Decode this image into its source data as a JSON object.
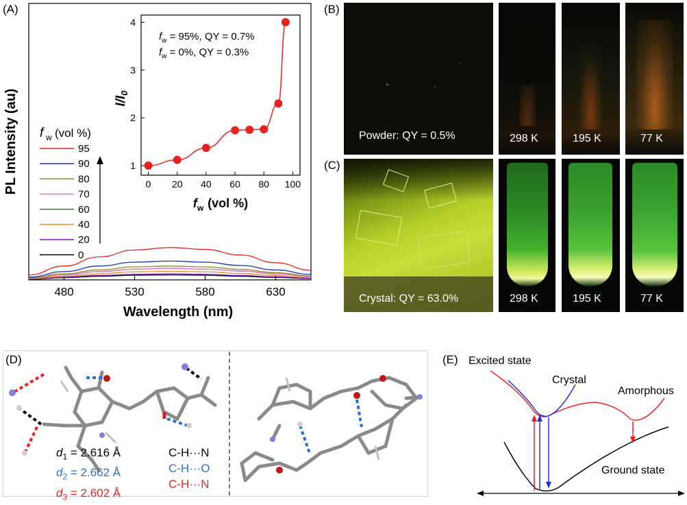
{
  "panels": {
    "A": {
      "label": "(A)",
      "xlabel": "Wavelength (nm)",
      "ylabel": "PL Intensity (au)",
      "x_ticks": [
        "480",
        "530",
        "580",
        "630"
      ],
      "legend_title_f": "f",
      "legend_title_sub": "w",
      "legend_title_unit": "(vol %)",
      "legend_entries": [
        {
          "label": "95",
          "color": "#e8231f"
        },
        {
          "label": "90",
          "color": "#1f2fb5"
        },
        {
          "label": "80",
          "color": "#8a8a1a"
        },
        {
          "label": "70",
          "color": "#f06ad2"
        },
        {
          "label": "60",
          "color": "#2a8a2a"
        },
        {
          "label": "40",
          "color": "#f08a1f"
        },
        {
          "label": "20",
          "color": "#7a1fb5"
        },
        {
          "label": "0",
          "color": "#000000"
        }
      ],
      "inset": {
        "xlabel_f": "f",
        "xlabel_sub": "w",
        "xlabel_unit": "(vol %)",
        "ylabel_main": "I/I",
        "ylabel_sub": "0",
        "x_ticks": [
          "0",
          "20",
          "40",
          "60",
          "80",
          "100"
        ],
        "y_ticks": [
          "1",
          "2",
          "3",
          "4"
        ],
        "annotations": [
          {
            "f": "f",
            "sub": "w",
            "text": " = 95%, QY = 0.7%"
          },
          {
            "f": "f",
            "sub": "w",
            "text": " =   0%, QY = 0.3%"
          }
        ]
      }
    },
    "B": {
      "label": "(B)",
      "captions": [
        "Powder: QY = 0.5%",
        "298 K",
        "195 K",
        "77 K"
      ]
    },
    "C": {
      "label": "(C)",
      "captions": [
        "Crystal: QY = 63.0%",
        "298 K",
        "195 K",
        "77 K"
      ]
    },
    "D": {
      "label": "(D)",
      "bonds": [
        {
          "d": "d",
          "sub": "1",
          "value": " = 2.616 Å",
          "type": "C-H···N",
          "color": "#000000"
        },
        {
          "d": "d",
          "sub": "2",
          "value": " = 2.662 Å",
          "type": "C-H···O",
          "color": "#2c6ed5"
        },
        {
          "d": "d",
          "sub": "3",
          "value": " = 2.602 Å",
          "type": "C-H···N",
          "color": "#e8231f"
        }
      ]
    },
    "E": {
      "label": "(E)",
      "excited": "Excited state",
      "crystal": "Crystal",
      "amorphous": "Amorphous",
      "ground": "Ground state"
    }
  },
  "chart_data": [
    {
      "type": "line",
      "panel": "A",
      "xlabel": "Wavelength (nm)",
      "ylabel": "PL Intensity (au)",
      "xlim": [
        455,
        655
      ],
      "ylim": [
        0,
        1
      ],
      "x": [
        455,
        480,
        505,
        530,
        555,
        580,
        605,
        630,
        655
      ],
      "series": [
        {
          "name": "95",
          "values": [
            0.018,
            0.05,
            0.083,
            0.108,
            0.117,
            0.11,
            0.09,
            0.062,
            0.035
          ]
        },
        {
          "name": "90",
          "values": [
            0.01,
            0.03,
            0.05,
            0.064,
            0.068,
            0.064,
            0.052,
            0.036,
            0.02
          ]
        },
        {
          "name": "80",
          "values": [
            0.007,
            0.022,
            0.036,
            0.047,
            0.05,
            0.047,
            0.038,
            0.026,
            0.014
          ]
        },
        {
          "name": "70",
          "values": [
            0.006,
            0.018,
            0.03,
            0.039,
            0.042,
            0.039,
            0.032,
            0.022,
            0.012
          ]
        },
        {
          "name": "60",
          "values": [
            0.006,
            0.018,
            0.03,
            0.039,
            0.042,
            0.039,
            0.032,
            0.022,
            0.012
          ]
        },
        {
          "name": "40",
          "values": [
            0.004,
            0.013,
            0.022,
            0.029,
            0.031,
            0.029,
            0.023,
            0.016,
            0.008
          ]
        },
        {
          "name": "20",
          "values": [
            0.003,
            0.01,
            0.016,
            0.02,
            0.022,
            0.02,
            0.016,
            0.011,
            0.006
          ]
        },
        {
          "name": "0",
          "values": [
            0.002,
            0.008,
            0.013,
            0.017,
            0.018,
            0.017,
            0.013,
            0.009,
            0.005
          ]
        }
      ]
    },
    {
      "type": "scatter",
      "panel": "A-inset",
      "xlabel": "fw (vol %)",
      "ylabel": "I/I0",
      "xlim": [
        -5,
        105
      ],
      "ylim": [
        0.8,
        4.15
      ],
      "x": [
        0,
        20,
        40,
        60,
        70,
        80,
        90,
        95
      ],
      "y": [
        1.0,
        1.12,
        1.37,
        1.74,
        1.75,
        1.76,
        2.3,
        4.0
      ]
    }
  ]
}
